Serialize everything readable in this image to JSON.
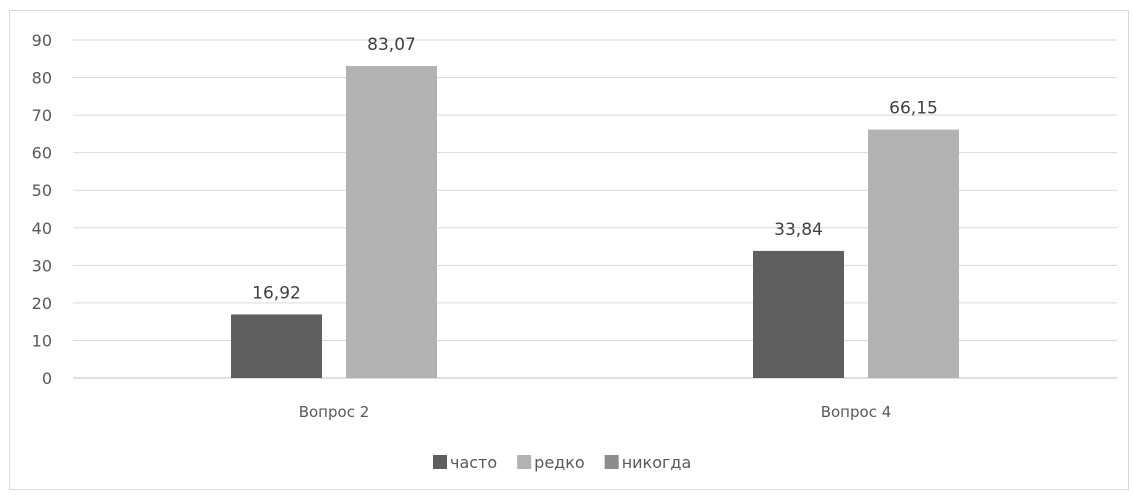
{
  "chart_data": {
    "type": "bar",
    "categories": [
      "Вопрос 2",
      "Вопрос 4"
    ],
    "series": [
      {
        "name": "часто",
        "values": [
          16.92,
          33.84
        ],
        "labels": [
          "16,92",
          "33,84"
        ],
        "color": "#5f5f5f"
      },
      {
        "name": "редко",
        "values": [
          83.07,
          66.15
        ],
        "labels": [
          "83,07",
          "66,15"
        ],
        "color": "#b2b2b2"
      },
      {
        "name": "никогда",
        "values": [
          null,
          null
        ],
        "labels": [],
        "color": "#8c8c8c"
      }
    ],
    "title": "",
    "xlabel": "",
    "ylabel": "",
    "ylim": [
      0,
      90
    ],
    "yticks": [
      0,
      10,
      20,
      30,
      40,
      50,
      60,
      70,
      80,
      90
    ],
    "grid": true,
    "legend": "bottom"
  }
}
